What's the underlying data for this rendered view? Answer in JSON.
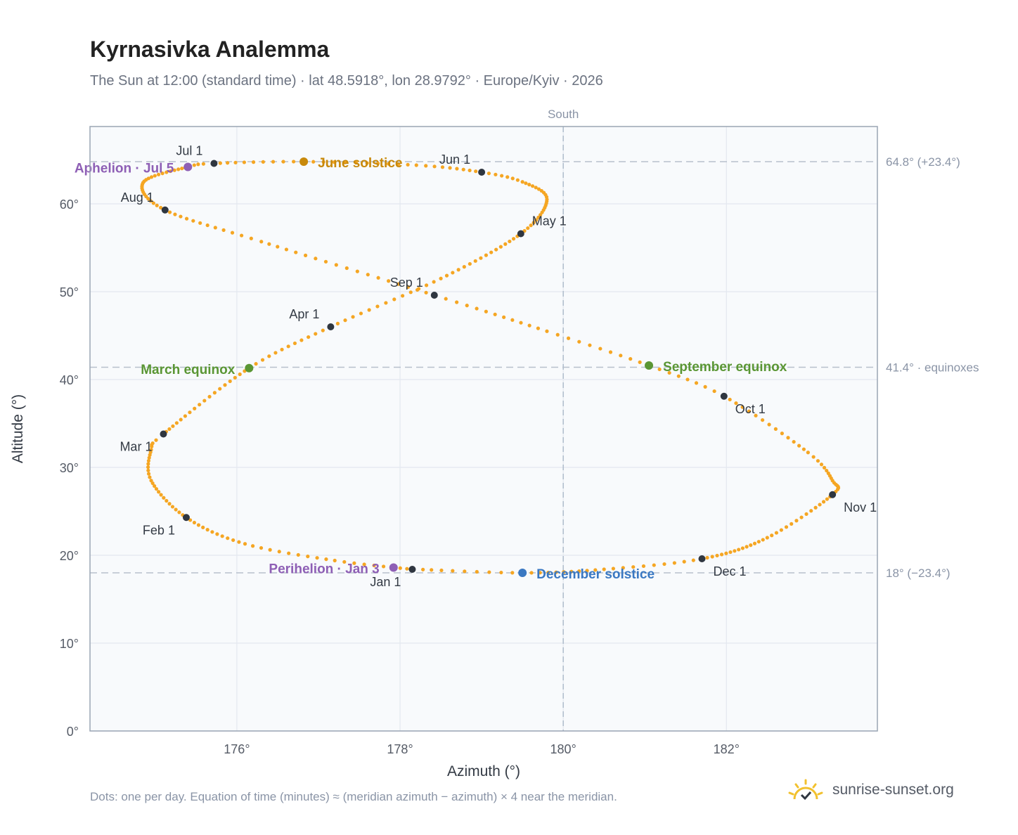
{
  "header": {
    "title": "Kyrnasivka Analemma",
    "subtitle": "The Sun at 12:00 (standard time) · lat 48.5918°, lon 28.9792° · Europe/Kyiv · 2026"
  },
  "footer": {
    "note": "Dots: one per day. Equation of time (minutes) ≈ (meridian azimuth − azimuth) × 4 near the meridian.",
    "brand": "sunrise-sunset.org",
    "brand_icon": "sun-icon"
  },
  "colors": {
    "path": "#f5a623",
    "month_marker": "#2f3640",
    "solstice_june": "#c8890b",
    "solstice_december": "#3a78c2",
    "equinox": "#5a9634",
    "apsis": "#8e5fb5",
    "reference_line": "#b7c0cc",
    "plot_bg": "#f8fafc"
  },
  "chart_data": {
    "type": "scatter",
    "title": "Kyrnasivka Analemma",
    "xlabel": "Azimuth (°)",
    "ylabel": "Altitude (°)",
    "xlim": [
      174.2,
      183.85
    ],
    "ylim": [
      0,
      68.8
    ],
    "x_ticks": [
      176,
      178,
      180,
      182
    ],
    "x_tick_labels": [
      "176°",
      "178°",
      "180°",
      "182°"
    ],
    "y_ticks": [
      0,
      10,
      20,
      30,
      40,
      50,
      60
    ],
    "y_tick_labels": [
      "0°",
      "10°",
      "20°",
      "30°",
      "40°",
      "50°",
      "60°"
    ],
    "grid": true,
    "meridian": {
      "azimuth": 180,
      "label": "South"
    },
    "reference_lines": [
      {
        "altitude": 64.8,
        "label": "64.8° (+23.4°)"
      },
      {
        "altitude": 41.4,
        "label": "41.4° · equinoxes"
      },
      {
        "altitude": 18.0,
        "label": "18° (−23.4°)"
      }
    ],
    "daily_path": [
      {
        "day": 1,
        "az": 178.15,
        "alt": 18.4
      },
      {
        "day": 10,
        "az": 177.2,
        "alt": 19.4
      },
      {
        "day": 20,
        "az": 176.1,
        "alt": 21.3
      },
      {
        "day": 32,
        "az": 175.38,
        "alt": 24.3
      },
      {
        "day": 45,
        "az": 174.95,
        "alt": 28.5
      },
      {
        "day": 55,
        "az": 174.95,
        "alt": 32.0
      },
      {
        "day": 60,
        "az": 175.1,
        "alt": 33.8
      },
      {
        "day": 79,
        "az": 176.15,
        "alt": 41.3
      },
      {
        "day": 91,
        "az": 177.15,
        "alt": 46.0
      },
      {
        "day": 105,
        "az": 178.5,
        "alt": 51.5
      },
      {
        "day": 121,
        "az": 179.48,
        "alt": 56.6
      },
      {
        "day": 135,
        "az": 179.8,
        "alt": 60.5
      },
      {
        "day": 145,
        "az": 179.5,
        "alt": 62.5
      },
      {
        "day": 152,
        "az": 179.0,
        "alt": 63.6
      },
      {
        "day": 161,
        "az": 178.2,
        "alt": 64.4
      },
      {
        "day": 172,
        "az": 176.82,
        "alt": 64.8
      },
      {
        "day": 182,
        "az": 175.72,
        "alt": 64.6
      },
      {
        "day": 186,
        "az": 175.4,
        "alt": 64.2
      },
      {
        "day": 200,
        "az": 174.85,
        "alt": 62.4
      },
      {
        "day": 213,
        "az": 175.12,
        "alt": 59.3
      },
      {
        "day": 226,
        "az": 176.3,
        "alt": 55.7
      },
      {
        "day": 244,
        "az": 178.42,
        "alt": 49.6
      },
      {
        "day": 256,
        "az": 179.8,
        "alt": 45.5
      },
      {
        "day": 266,
        "az": 181.05,
        "alt": 41.6
      },
      {
        "day": 274,
        "az": 181.97,
        "alt": 38.1
      },
      {
        "day": 288,
        "az": 183.0,
        "alt": 31.7
      },
      {
        "day": 297,
        "az": 183.3,
        "alt": 28.5
      },
      {
        "day": 305,
        "az": 183.3,
        "alt": 26.9
      },
      {
        "day": 320,
        "az": 182.5,
        "alt": 22.0
      },
      {
        "day": 335,
        "az": 181.7,
        "alt": 19.6
      },
      {
        "day": 345,
        "az": 180.5,
        "alt": 18.4
      },
      {
        "day": 355,
        "az": 179.5,
        "alt": 18.0
      },
      {
        "day": 365,
        "az": 178.2,
        "alt": 18.4
      }
    ],
    "month_markers": [
      {
        "label": "Jan 1",
        "az": 178.15,
        "alt": 18.4,
        "pos": "below-left"
      },
      {
        "label": "Feb 1",
        "az": 175.38,
        "alt": 24.3,
        "pos": "below-left"
      },
      {
        "label": "Mar 1",
        "az": 175.1,
        "alt": 33.8,
        "pos": "below-left"
      },
      {
        "label": "Apr 1",
        "az": 177.15,
        "alt": 46.0,
        "pos": "above-left"
      },
      {
        "label": "May 1",
        "az": 179.48,
        "alt": 56.6,
        "pos": "above-right"
      },
      {
        "label": "Jun 1",
        "az": 179.0,
        "alt": 63.6,
        "pos": "above-left"
      },
      {
        "label": "Jul 1",
        "az": 175.72,
        "alt": 64.6,
        "pos": "above-left"
      },
      {
        "label": "Aug 1",
        "az": 175.12,
        "alt": 59.3,
        "pos": "above-left"
      },
      {
        "label": "Sep 1",
        "az": 178.42,
        "alt": 49.6,
        "pos": "above-left"
      },
      {
        "label": "Oct 1",
        "az": 181.97,
        "alt": 38.1,
        "pos": "below-right"
      },
      {
        "label": "Nov 1",
        "az": 183.3,
        "alt": 26.9,
        "pos": "below-right"
      },
      {
        "label": "Dec 1",
        "az": 181.7,
        "alt": 19.6,
        "pos": "below-right"
      }
    ],
    "events": [
      {
        "label": "June solstice",
        "az": 176.82,
        "alt": 64.8,
        "kind": "solstice_june",
        "pos": "right"
      },
      {
        "label": "December solstice",
        "az": 179.5,
        "alt": 18.0,
        "kind": "solstice_december",
        "pos": "right"
      },
      {
        "label": "March equinox",
        "az": 176.15,
        "alt": 41.3,
        "kind": "equinox",
        "pos": "left"
      },
      {
        "label": "September equinox",
        "az": 181.05,
        "alt": 41.6,
        "kind": "equinox",
        "pos": "right"
      },
      {
        "label": "Aphelion · Jul 5",
        "az": 175.4,
        "alt": 64.2,
        "kind": "apsis",
        "pos": "left"
      },
      {
        "label": "Perihelion · Jan 3",
        "az": 177.92,
        "alt": 18.6,
        "kind": "apsis",
        "pos": "left"
      }
    ]
  }
}
